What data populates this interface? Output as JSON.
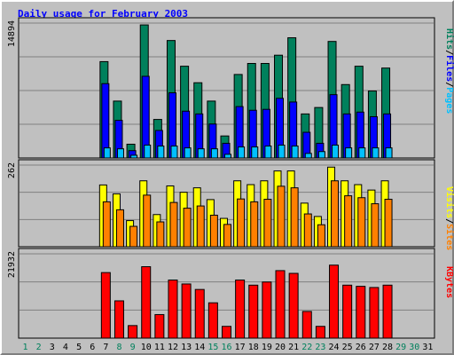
{
  "chart_data": {
    "type": "bar",
    "title": "Daily usage for February 2003",
    "days": [
      "1",
      "2",
      "3",
      "4",
      "5",
      "6",
      "7",
      "8",
      "9",
      "10",
      "11",
      "12",
      "13",
      "14",
      "15",
      "16",
      "17",
      "18",
      "19",
      "20",
      "21",
      "22",
      "23",
      "24",
      "25",
      "26",
      "27",
      "28",
      "29",
      "30",
      "31"
    ],
    "weekend_days": [
      "1",
      "2",
      "8",
      "9",
      "15",
      "16",
      "22",
      "23",
      "29",
      "30"
    ],
    "invalid_days": [
      "29",
      "30",
      "31"
    ],
    "panels": [
      {
        "name": "hits-files-pages",
        "max_label": "14894",
        "max": 14894,
        "series": [
          {
            "name": "Hits",
            "color": "#00805c",
            "values": [
              0,
              0,
              0,
              0,
              0,
              0,
              10500,
              6200,
              1500,
              14500,
              4200,
              12800,
              10000,
              8200,
              6200,
              2400,
              9100,
              10300,
              10300,
              11200,
              13100,
              4800,
              5500,
              12700,
              8000,
              10000,
              7300,
              9800,
              0,
              0,
              0
            ]
          },
          {
            "name": "Files",
            "color": "#0000ff",
            "values": [
              0,
              0,
              0,
              0,
              0,
              0,
              8100,
              4100,
              800,
              8900,
              3000,
              7100,
              5100,
              4800,
              3700,
              1600,
              5600,
              5200,
              5300,
              6500,
              6100,
              2800,
              1600,
              6900,
              4800,
              5000,
              4500,
              4800,
              0,
              0,
              0
            ]
          },
          {
            "name": "Pages",
            "color": "#00c0ff",
            "values": [
              0,
              0,
              0,
              0,
              0,
              0,
              1100,
              1000,
              300,
              1400,
              1300,
              1300,
              1100,
              1000,
              1000,
              400,
              1200,
              1200,
              1300,
              1400,
              1300,
              500,
              700,
              1400,
              1100,
              1100,
              1100,
              1100,
              0,
              0,
              0
            ]
          }
        ]
      },
      {
        "name": "visits-sites",
        "max_label": "262",
        "max": 262,
        "series": [
          {
            "name": "Visits",
            "color": "#ffff00",
            "values": [
              0,
              0,
              0,
              0,
              0,
              0,
              194,
              166,
              82,
              207,
              101,
              191,
              171,
              185,
              148,
              89,
              207,
              195,
              207,
              238,
              238,
              137,
              95,
              250,
              207,
              195,
              178,
              207,
              0,
              0,
              0
            ]
          },
          {
            "name": "Sites",
            "color": "#ff8000",
            "values": [
              0,
              0,
              0,
              0,
              0,
              0,
              141,
              116,
              64,
              162,
              78,
              139,
              121,
              128,
              99,
              70,
              150,
              141,
              149,
              190,
              185,
              103,
              69,
              207,
              160,
              154,
              135,
              149,
              0,
              0,
              0
            ]
          }
        ]
      },
      {
        "name": "kbytes",
        "max_label": "21932",
        "max": 21932,
        "series": [
          {
            "name": "KBytes",
            "color": "#ff0000",
            "values": [
              0,
              0,
              0,
              0,
              0,
              0,
              16700,
              9500,
              3200,
              18200,
              6000,
              14800,
              13800,
              12400,
              9000,
              3000,
              14800,
              13500,
              14300,
              17200,
              16500,
              6800,
              3000,
              18600,
              13500,
              13200,
              12900,
              13500,
              0,
              0,
              0
            ]
          }
        ]
      }
    ],
    "legend_right": [
      [
        "Pages",
        "/",
        "Files",
        "/",
        "Hits"
      ],
      [
        "Sites",
        "/",
        "Visits"
      ],
      [
        "KBytes"
      ]
    ],
    "colors": {
      "background": "#c0c0c0",
      "title": "#0000ff",
      "day_weekday": "#000000",
      "day_weekend": "#00805c",
      "gridline": "#808080"
    }
  }
}
